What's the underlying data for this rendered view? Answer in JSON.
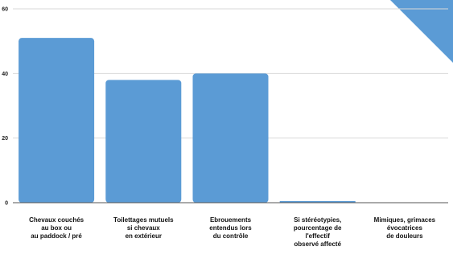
{
  "colors": {
    "bar": "#5b9bd5",
    "corner_shape": "#5b9bd5",
    "gridline": "#d9d9d9",
    "axis": "#555555",
    "text": "#111111"
  },
  "chart_data": {
    "type": "bar",
    "title": "",
    "xlabel": "",
    "ylabel": "",
    "ylim": [
      0,
      60
    ],
    "yticks": [
      0,
      20,
      40,
      60
    ],
    "grid": true,
    "legend": "none",
    "categories": [
      [
        "Chevaux couchés",
        "au box ou",
        "au paddock / pré"
      ],
      [
        "Toilettages mutuels",
        "si chevaux",
        "en extérieur"
      ],
      [
        "Ebrouements",
        "entendus lors",
        "du contrôle"
      ],
      [
        "Si stéréotypies,",
        "pourcentage de",
        "l'effectif",
        "observé affecté"
      ],
      [
        "Mimiques, grimaces",
        "évocatrices",
        "de douleurs"
      ]
    ],
    "values": [
      51,
      38,
      40,
      0.5,
      0
    ]
  }
}
